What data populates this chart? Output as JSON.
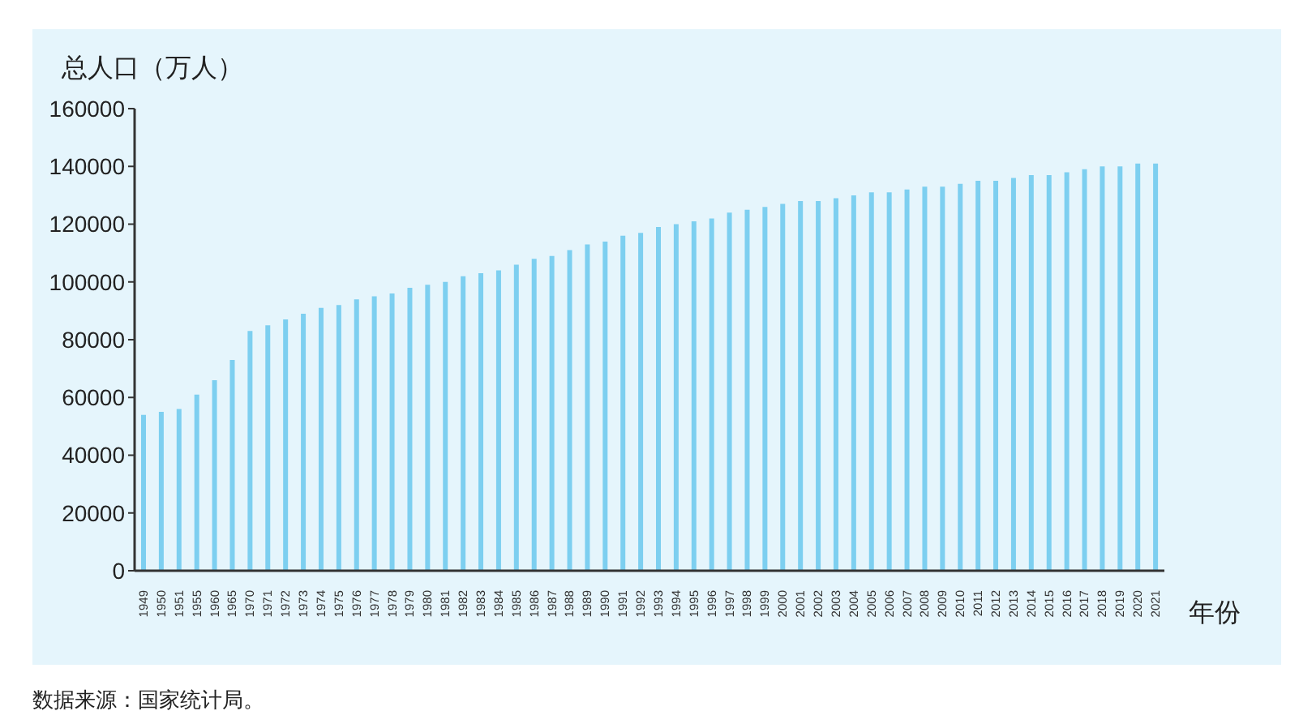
{
  "chart_data": {
    "type": "bar",
    "title": "总人口（万人）",
    "xlabel": "年份",
    "annotations": [
      "数据来源：国家统计局。"
    ],
    "categories": [
      "1949",
      "1950",
      "1951",
      "1955",
      "1960",
      "1965",
      "1970",
      "1971",
      "1972",
      "1973",
      "1974",
      "1975",
      "1976",
      "1977",
      "1978",
      "1979",
      "1980",
      "1981",
      "1982",
      "1983",
      "1984",
      "1985",
      "1986",
      "1987",
      "1988",
      "1989",
      "1990",
      "1991",
      "1992",
      "1993",
      "1994",
      "1995",
      "1996",
      "1997",
      "1998",
      "1999",
      "2000",
      "2001",
      "2002",
      "2003",
      "2004",
      "2005",
      "2006",
      "2007",
      "2008",
      "2009",
      "2010",
      "2011",
      "2012",
      "2013",
      "2014",
      "2015",
      "2016",
      "2017",
      "2018",
      "2019",
      "2020",
      "2021"
    ],
    "values": [
      54000,
      55000,
      56000,
      61000,
      66000,
      73000,
      83000,
      85000,
      87000,
      89000,
      91000,
      92000,
      94000,
      95000,
      96000,
      98000,
      99000,
      100000,
      102000,
      103000,
      104000,
      106000,
      108000,
      109000,
      111000,
      113000,
      114000,
      116000,
      117000,
      119000,
      120000,
      121000,
      122000,
      124000,
      125000,
      126000,
      127000,
      128000,
      128000,
      129000,
      130000,
      131000,
      131000,
      132000,
      133000,
      133000,
      134000,
      135000,
      135000,
      136000,
      137000,
      137000,
      138000,
      139000,
      140000,
      140000,
      141000,
      141000
    ],
    "color": "#7dcff0",
    "ylim": [
      0,
      160000
    ],
    "yticks": [
      0,
      20000,
      40000,
      60000,
      80000,
      100000,
      120000,
      140000,
      160000
    ],
    "grid": false,
    "legend": false
  }
}
